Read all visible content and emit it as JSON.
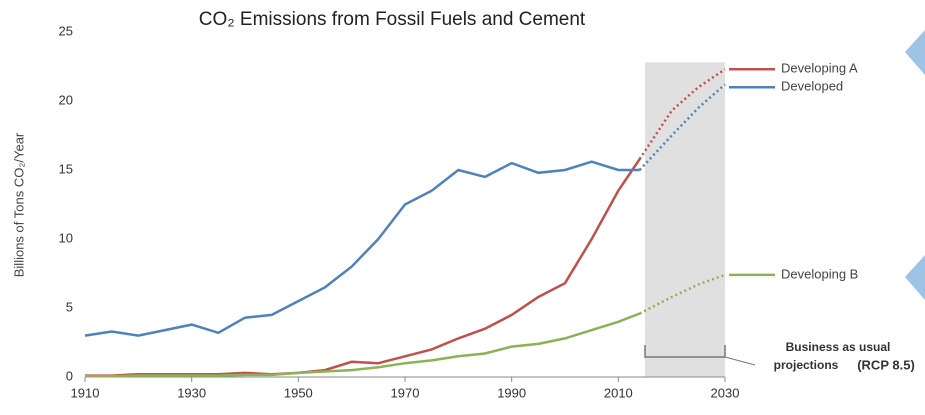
{
  "chart_data": {
    "type": "line",
    "title": "CO₂ Emissions from Fossil Fuels and Cement",
    "y_label": "Billions of Tons CO₂/Year",
    "x": [
      1910,
      1915,
      1920,
      1925,
      1930,
      1935,
      1940,
      1945,
      1950,
      1955,
      1960,
      1965,
      1970,
      1975,
      1980,
      1985,
      1990,
      1995,
      2000,
      2005,
      2010,
      2014,
      2020,
      2025,
      2030
    ],
    "projection_from": 2014,
    "series": [
      {
        "name": "Developing A",
        "color": "#c0504d",
        "values": [
          0.1,
          0.1,
          0.2,
          0.2,
          0.2,
          0.2,
          0.3,
          0.2,
          0.3,
          0.5,
          1.1,
          1.0,
          1.5,
          2.0,
          2.8,
          3.5,
          4.5,
          5.8,
          6.8,
          10.0,
          13.5,
          15.8,
          19.3,
          21.0,
          22.3
        ]
      },
      {
        "name": "Developed",
        "color": "#4f81bd",
        "values": [
          3.0,
          3.3,
          3.0,
          3.4,
          3.8,
          3.2,
          4.3,
          4.5,
          5.5,
          6.5,
          8.0,
          10.0,
          12.5,
          13.5,
          15.0,
          14.5,
          15.5,
          14.8,
          15.0,
          15.6,
          15.0,
          15.0,
          17.5,
          19.5,
          21.2
        ]
      },
      {
        "name": "Developing B",
        "color": "#8db255",
        "values": [
          0.05,
          0.05,
          0.1,
          0.1,
          0.1,
          0.1,
          0.15,
          0.15,
          0.3,
          0.4,
          0.5,
          0.7,
          1.0,
          1.2,
          1.5,
          1.7,
          2.2,
          2.4,
          2.8,
          3.4,
          4.0,
          4.6,
          5.8,
          6.7,
          7.4
        ]
      }
    ],
    "shade": {
      "x": [
        2015,
        2030
      ],
      "y": [
        0,
        22.8
      ],
      "color": "#e0e0e0"
    },
    "annotation": [
      "Business as usual",
      "projections",
      "(RCP 8.5)"
    ],
    "xlim": [
      1910,
      2030
    ],
    "xticks": [
      1910,
      1930,
      1950,
      1970,
      1990,
      2010,
      2030
    ],
    "ylim": [
      0,
      25
    ],
    "yticks": [
      0,
      5,
      10,
      15,
      20,
      25
    ],
    "grid": false
  }
}
